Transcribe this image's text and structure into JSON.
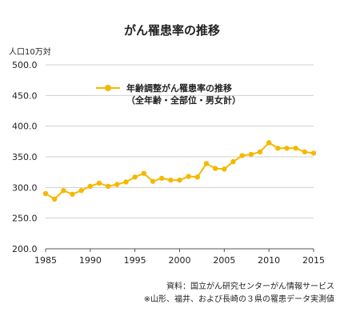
{
  "chart_data": {
    "type": "line",
    "title": "がん罹患率の推移",
    "ylabel": "人口10万対",
    "xlim": [
      1985,
      2015
    ],
    "ylim": [
      200,
      500
    ],
    "xticks": [
      "1985",
      "1990",
      "1995",
      "2000",
      "2005",
      "2010",
      "2015"
    ],
    "yticks": [
      "200.0",
      "250.0",
      "300.0",
      "350.0",
      "400.0",
      "450.0",
      "500.0"
    ],
    "grid": "horizontal",
    "legend_position": "top-center",
    "series": [
      {
        "name": "年齢調整がん罹患率の推移",
        "name_sub": "（全年齢・全部位・男女計）",
        "color": "#f5b800",
        "x": [
          1985,
          1986,
          1987,
          1988,
          1989,
          1990,
          1991,
          1992,
          1993,
          1994,
          1995,
          1996,
          1997,
          1998,
          1999,
          2000,
          2001,
          2002,
          2003,
          2004,
          2005,
          2006,
          2007,
          2008,
          2009,
          2010,
          2011,
          2012,
          2013,
          2014,
          2015
        ],
        "y": [
          290,
          281,
          295,
          289,
          295,
          302,
          307,
          302,
          305,
          309,
          317,
          323,
          310,
          315,
          312,
          312,
          318,
          317,
          339,
          331,
          330,
          342,
          352,
          354,
          358,
          373,
          364,
          364,
          364,
          358,
          356
        ]
      }
    ]
  },
  "source": {
    "line1": "資料：国立がん研究センターがん情報サービス",
    "line2": "※山形、福井、および長崎の３県の罹患データ実測値"
  }
}
